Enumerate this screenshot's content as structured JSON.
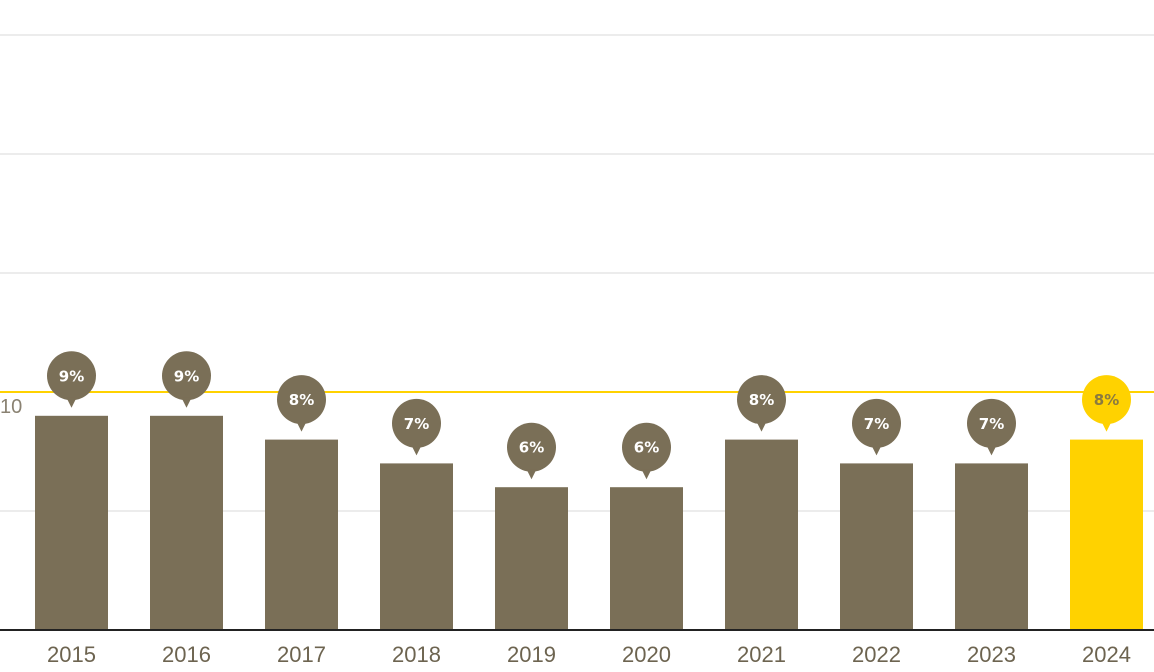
{
  "chart_data": {
    "type": "bar",
    "categories": [
      "2015",
      "2016",
      "2017",
      "2018",
      "2019",
      "2020",
      "2021",
      "2022",
      "2023",
      "2024"
    ],
    "values": [
      9,
      9,
      8,
      7,
      6,
      6,
      8,
      7,
      7,
      8
    ],
    "data_labels": [
      "9%",
      "9%",
      "8%",
      "7%",
      "6%",
      "6%",
      "8%",
      "7%",
      "7%",
      "8%"
    ],
    "highlight_index": 9,
    "ylim": [
      0,
      26
    ],
    "y_ticks": [
      0,
      5,
      10,
      15,
      20,
      25
    ],
    "y_tick_labels_visible": [
      "10"
    ],
    "reference_line": 10,
    "grid": true,
    "title": "",
    "xlabel": "",
    "ylabel": ""
  },
  "colors": {
    "bar": "#7a6f57",
    "highlight": "#ffd200",
    "highlight_label_text": "#8a7a40",
    "label_text": "#ffffff",
    "reference_line": "#ffd200",
    "grid": "#d9d9d9",
    "axis": "#222222",
    "tick_text": "#6d6450"
  }
}
